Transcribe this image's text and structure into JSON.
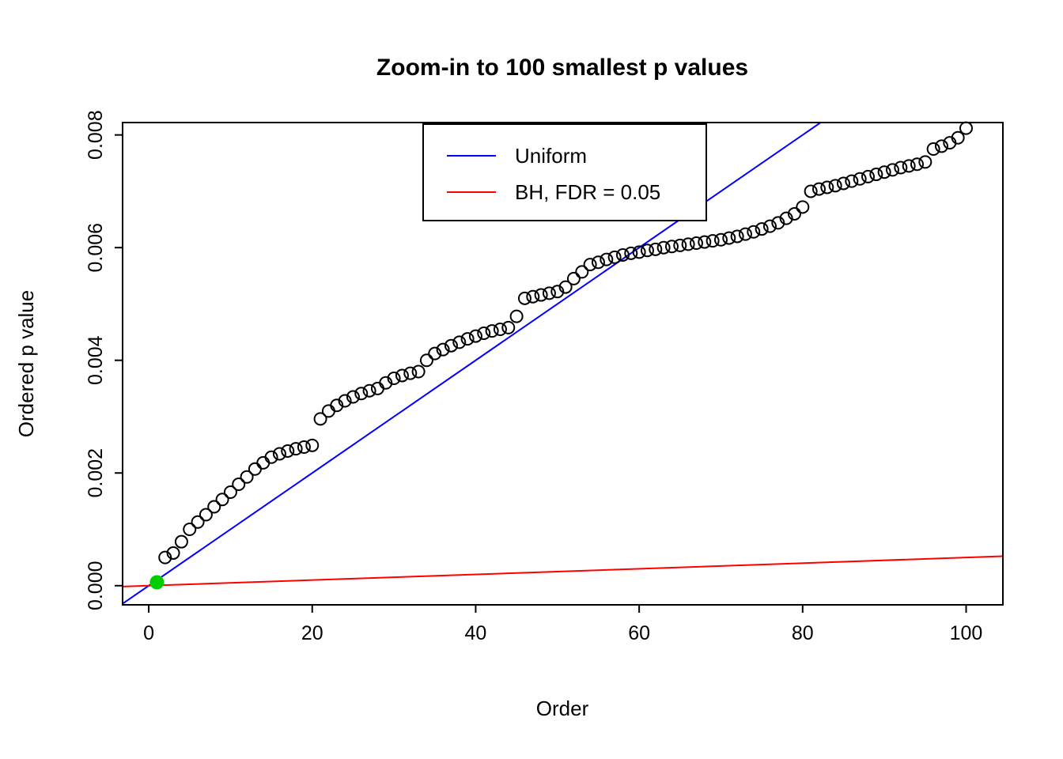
{
  "chart_data": {
    "type": "scatter",
    "title": "Zoom-in to 100 smallest p values",
    "xlabel": "Order",
    "ylabel": "Ordered p value",
    "xlim": [
      -3.2,
      104.5
    ],
    "ylim": [
      -0.00034,
      0.00822
    ],
    "grid": false,
    "xticks": {
      "values": [
        0,
        20,
        40,
        60,
        80,
        100
      ],
      "labels": [
        "0",
        "20",
        "40",
        "60",
        "80",
        "100"
      ]
    },
    "yticks": {
      "values": [
        0,
        0.002,
        0.004,
        0.006,
        0.008
      ],
      "labels": [
        "0.000",
        "0.002",
        "0.004",
        "0.006",
        "0.008"
      ]
    },
    "points": {
      "name": "ordered-p-values",
      "marker": "open-circle",
      "color": "#000000",
      "x": [
        1,
        2,
        3,
        4,
        5,
        6,
        7,
        8,
        9,
        10,
        11,
        12,
        13,
        14,
        15,
        16,
        17,
        18,
        19,
        20,
        21,
        22,
        23,
        24,
        25,
        26,
        27,
        28,
        29,
        30,
        31,
        32,
        33,
        34,
        35,
        36,
        37,
        38,
        39,
        40,
        41,
        42,
        43,
        44,
        45,
        46,
        47,
        48,
        49,
        50,
        51,
        52,
        53,
        54,
        55,
        56,
        57,
        58,
        59,
        60,
        61,
        62,
        63,
        64,
        65,
        66,
        67,
        68,
        69,
        70,
        71,
        72,
        73,
        74,
        75,
        76,
        77,
        78,
        79,
        80,
        81,
        82,
        83,
        84,
        85,
        86,
        87,
        88,
        89,
        90,
        91,
        92,
        93,
        94,
        95,
        96,
        97,
        98,
        99,
        100
      ],
      "y": [
        6e-05,
        0.0005,
        0.00058,
        0.00078,
        0.001,
        0.00113,
        0.00126,
        0.0014,
        0.00153,
        0.00166,
        0.0018,
        0.00193,
        0.00207,
        0.00218,
        0.00228,
        0.00234,
        0.00239,
        0.00243,
        0.00246,
        0.00249,
        0.00296,
        0.0031,
        0.0032,
        0.00328,
        0.00335,
        0.00341,
        0.00346,
        0.0035,
        0.0036,
        0.00368,
        0.00373,
        0.00377,
        0.0038,
        0.004,
        0.00412,
        0.00419,
        0.00426,
        0.00432,
        0.00438,
        0.00443,
        0.00448,
        0.00452,
        0.00455,
        0.00458,
        0.00478,
        0.0051,
        0.00513,
        0.00516,
        0.00519,
        0.00522,
        0.0053,
        0.00545,
        0.00557,
        0.0057,
        0.00574,
        0.00579,
        0.00583,
        0.00587,
        0.0059,
        0.00592,
        0.00595,
        0.00597,
        0.006,
        0.00602,
        0.00604,
        0.00606,
        0.00608,
        0.0061,
        0.00612,
        0.00614,
        0.00617,
        0.0062,
        0.00624,
        0.00628,
        0.00633,
        0.00638,
        0.00644,
        0.00652,
        0.0066,
        0.00672,
        0.007,
        0.00704,
        0.00707,
        0.0071,
        0.00714,
        0.00718,
        0.00722,
        0.00726,
        0.0073,
        0.00734,
        0.00738,
        0.00742,
        0.00745,
        0.00748,
        0.00752,
        0.00775,
        0.0078,
        0.00786,
        0.00795,
        0.00812
      ]
    },
    "highlight_point": {
      "name": "significant-p-value",
      "x": 1,
      "y": 6e-05,
      "color": "#00CD00",
      "marker": "filled-circle"
    },
    "lines": [
      {
        "name": "uniform-line",
        "label": "Uniform",
        "color": "#0000FF",
        "slope": 0.0001,
        "intercept": 0
      },
      {
        "name": "bh-line",
        "label": "BH, FDR = 0.05",
        "color": "#FF0000",
        "slope": 5e-06,
        "intercept": 0
      }
    ],
    "legend": {
      "position": "top-center",
      "entries": [
        {
          "label": "Uniform",
          "color": "#0000FF"
        },
        {
          "label": "BH, FDR = 0.05",
          "color": "#FF0000"
        }
      ]
    }
  }
}
